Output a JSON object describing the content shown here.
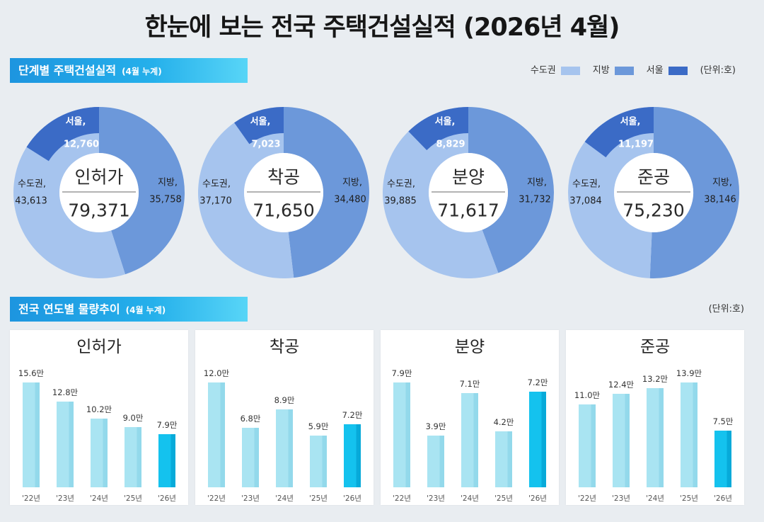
{
  "title": "한눈에 보는 전국 주택건설실적 (2026년 4월)",
  "section_stage": {
    "title": "단계별 주택건설실적",
    "sub": "(4월 누계)"
  },
  "legend": {
    "items": [
      {
        "label": "수도권",
        "color": "#a6c4ee"
      },
      {
        "label": "지방",
        "color": "#6c98da"
      },
      {
        "label": "서울",
        "color": "#3b6bc6"
      }
    ],
    "unit": "(단위:호)"
  },
  "section_trend": {
    "title": "전국 연도별 물량추이",
    "sub": "(4월 누계)",
    "unit": "(단위:호)"
  },
  "colors": {
    "bar": "#a9e4f2",
    "bar_edge": "#93d9eb",
    "bar_highlight": "#14c2ee",
    "bar_highlight_edge": "#07aad9"
  },
  "chart_data": [
    {
      "type": "pie",
      "title": "인허가",
      "total_label": "79,371",
      "segments": [
        {
          "label": "지방,",
          "value": 35758,
          "value_label": "35,758"
        },
        {
          "label": "수도권,",
          "value": 43613,
          "value_label": "43,613",
          "sub": {
            "label": "서울,",
            "value": 12760,
            "value_label": "12,760"
          }
        }
      ]
    },
    {
      "type": "pie",
      "title": "착공",
      "total_label": "71,650",
      "segments": [
        {
          "label": "지방,",
          "value": 34480,
          "value_label": "34,480"
        },
        {
          "label": "수도권,",
          "value": 37170,
          "value_label": "37,170",
          "sub": {
            "label": "서울,",
            "value": 7023,
            "value_label": "7,023"
          }
        }
      ]
    },
    {
      "type": "pie",
      "title": "분양",
      "total_label": "71,617",
      "segments": [
        {
          "label": "지방,",
          "value": 31732,
          "value_label": "31,732"
        },
        {
          "label": "수도권,",
          "value": 39885,
          "value_label": "39,885",
          "sub": {
            "label": "서울,",
            "value": 8829,
            "value_label": "8,829"
          }
        }
      ]
    },
    {
      "type": "pie",
      "title": "준공",
      "total_label": "75,230",
      "segments": [
        {
          "label": "지방,",
          "value": 38146,
          "value_label": "38,146"
        },
        {
          "label": "수도권,",
          "value": 37084,
          "value_label": "37,084",
          "sub": {
            "label": "서울,",
            "value": 11197,
            "value_label": "11,197"
          }
        }
      ]
    },
    {
      "type": "bar",
      "title": "인허가",
      "categories": [
        "'22년",
        "'23년",
        "'24년",
        "'25년",
        "'26년"
      ],
      "values": [
        15.6,
        12.8,
        10.2,
        9.0,
        7.9
      ],
      "value_labels": [
        "15.6만",
        "12.8만",
        "10.2만",
        "9.0만",
        "7.9만"
      ],
      "highlight_index": 4
    },
    {
      "type": "bar",
      "title": "착공",
      "categories": [
        "'22년",
        "'23년",
        "'24년",
        "'25년",
        "'26년"
      ],
      "values": [
        12.0,
        6.8,
        8.9,
        5.9,
        7.2
      ],
      "value_labels": [
        "12.0만",
        "6.8만",
        "8.9만",
        "5.9만",
        "7.2만"
      ],
      "highlight_index": 4
    },
    {
      "type": "bar",
      "title": "분양",
      "categories": [
        "'22년",
        "'23년",
        "'24년",
        "'25년",
        "'26년"
      ],
      "values": [
        7.9,
        3.9,
        7.1,
        4.2,
        7.2
      ],
      "value_labels": [
        "7.9만",
        "3.9만",
        "7.1만",
        "4.2만",
        "7.2만"
      ],
      "highlight_index": 4
    },
    {
      "type": "bar",
      "title": "준공",
      "categories": [
        "'22년",
        "'23년",
        "'24년",
        "'25년",
        "'26년"
      ],
      "values": [
        11.0,
        12.4,
        13.2,
        13.9,
        7.5
      ],
      "value_labels": [
        "11.0만",
        "12.4만",
        "13.2만",
        "13.9만",
        "7.5만"
      ],
      "highlight_index": 4
    }
  ]
}
